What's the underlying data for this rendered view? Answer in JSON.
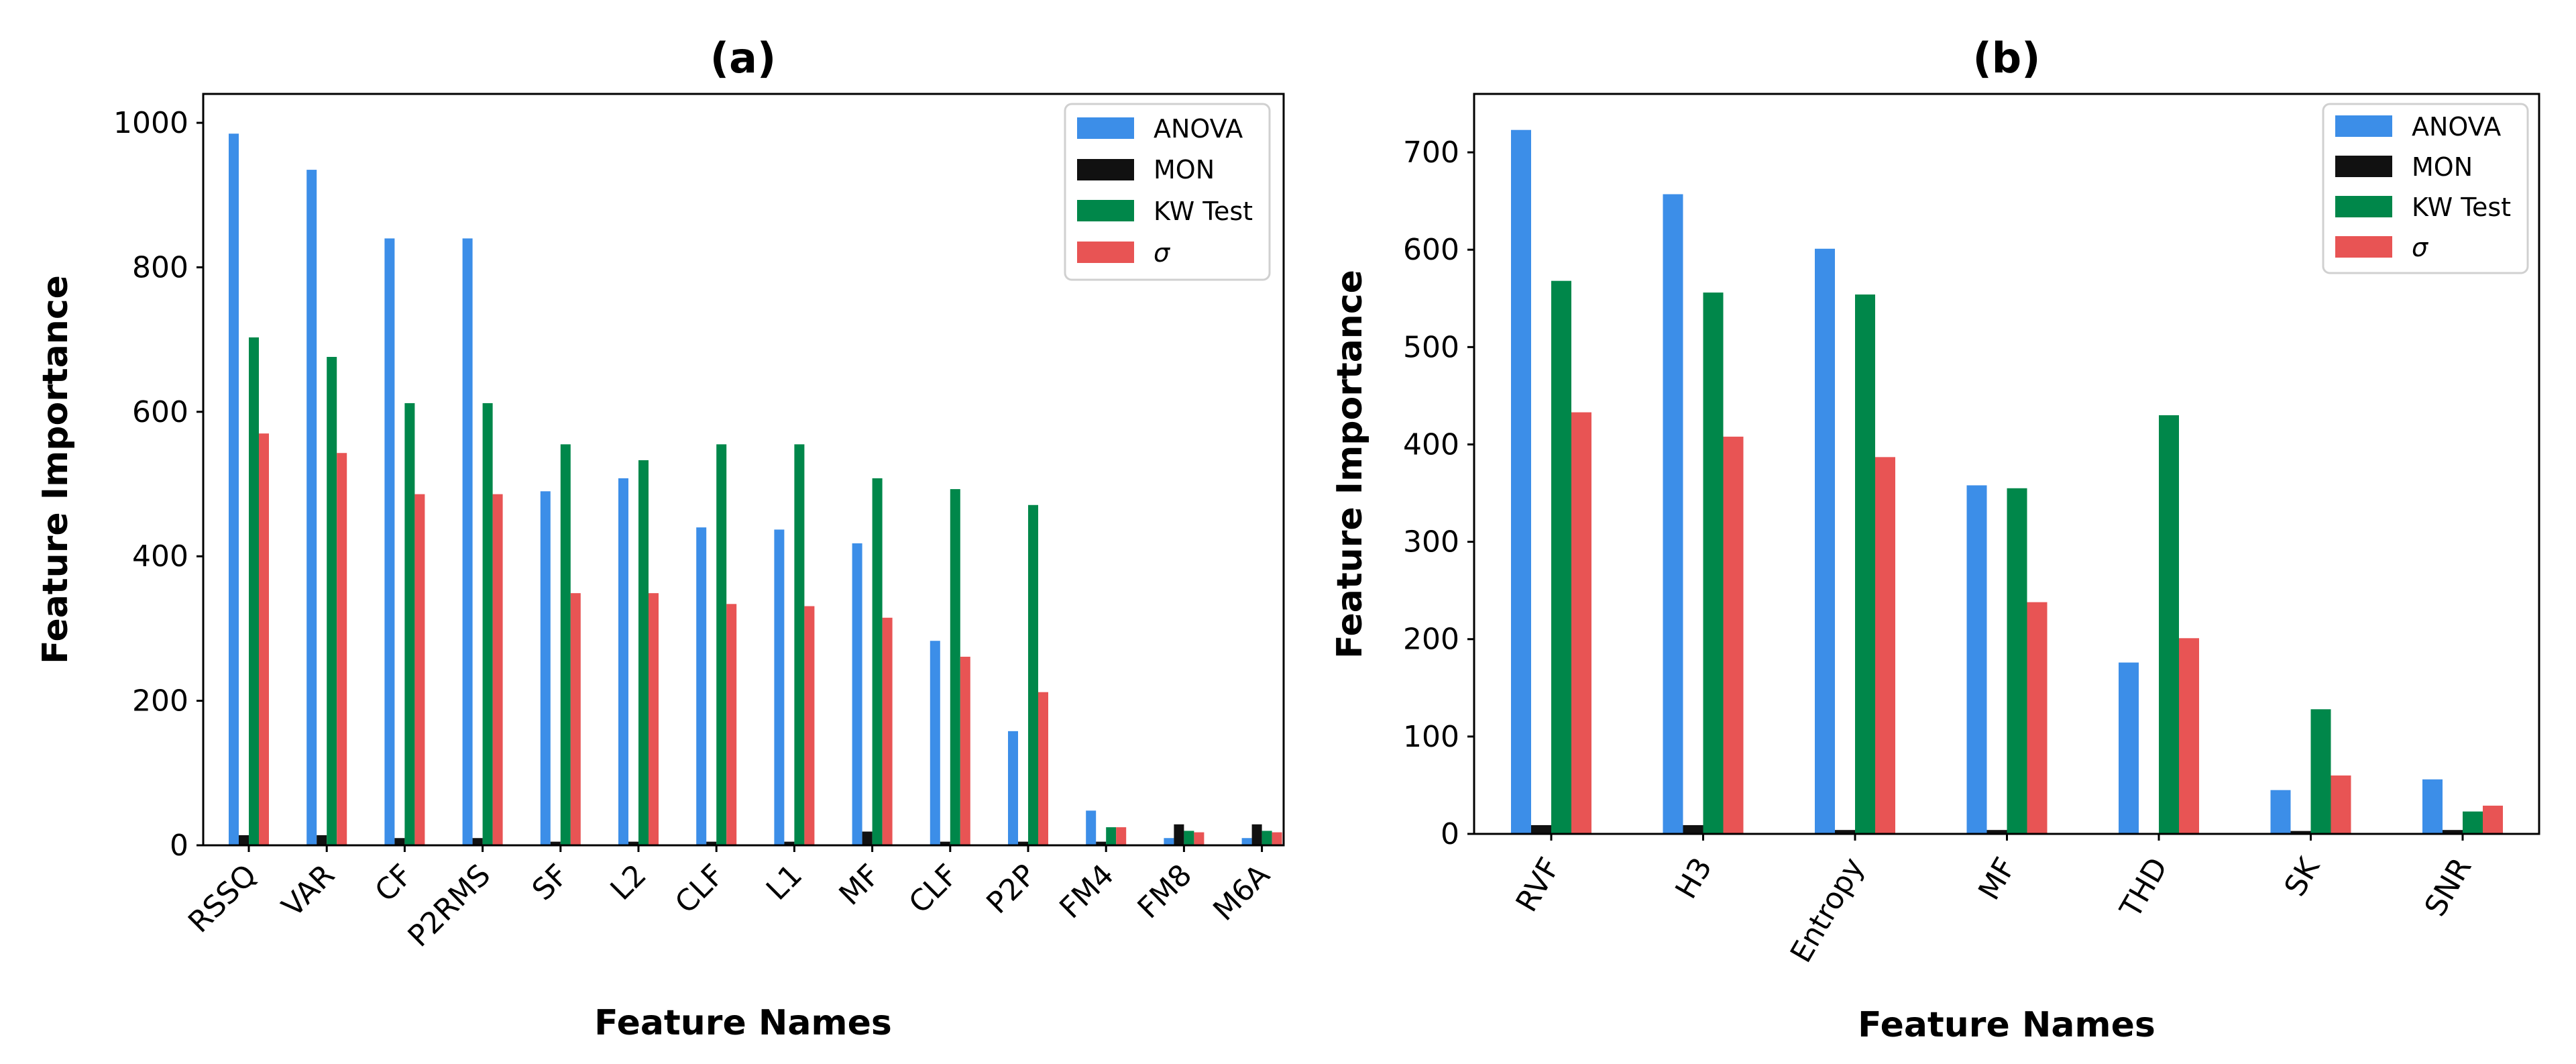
{
  "chart_data": [
    {
      "type": "bar",
      "title": "(a)",
      "xlabel": "Feature Names",
      "ylabel": "Feature Importance",
      "ylim": [
        0,
        1040
      ],
      "yticks": [
        0,
        200,
        400,
        600,
        800,
        1000
      ],
      "categories": [
        "RSSQ",
        "VAR",
        "CF",
        "P2RMS",
        "SF",
        "L2",
        "CLF",
        "L1",
        "MF",
        "CLF",
        "P2P",
        "FM4",
        "FM8",
        "M6A"
      ],
      "series": [
        {
          "name": "ANOVA",
          "color": "#3c8ee8",
          "values": [
            985,
            935,
            840,
            840,
            490,
            508,
            440,
            437,
            418,
            283,
            158,
            48,
            10,
            10
          ]
        },
        {
          "name": "MON",
          "color": "#111111",
          "values": [
            14,
            14,
            10,
            10,
            5,
            5,
            5,
            5,
            19,
            5,
            5,
            5,
            29,
            29
          ]
        },
        {
          "name": "KW Test",
          "color": "#00874a",
          "values": [
            703,
            676,
            612,
            612,
            555,
            533,
            555,
            555,
            508,
            493,
            471,
            25,
            20,
            20
          ]
        },
        {
          "name": "σ",
          "color": "#e85454",
          "values": [
            570,
            543,
            486,
            486,
            349,
            349,
            334,
            331,
            315,
            261,
            212,
            25,
            18,
            18
          ]
        }
      ],
      "legend": {
        "position": "top-right",
        "labels": [
          "ANOVA",
          "MON",
          "KW Test",
          "σ"
        ]
      }
    },
    {
      "type": "bar",
      "title": "(b)",
      "xlabel": "Feature Names",
      "ylabel": "Feature Importance",
      "ylim": [
        0,
        760
      ],
      "yticks": [
        0,
        100,
        200,
        300,
        400,
        500,
        600,
        700
      ],
      "categories": [
        "RVF",
        "H3",
        "Entropy",
        "MF",
        "THD",
        "SK",
        "SNR"
      ],
      "series": [
        {
          "name": "ANOVA",
          "color": "#3c8ee8",
          "values": [
            723,
            657,
            601,
            358,
            176,
            45,
            56
          ]
        },
        {
          "name": "MON",
          "color": "#111111",
          "values": [
            9,
            9,
            4,
            4,
            1,
            3,
            4
          ]
        },
        {
          "name": "KW Test",
          "color": "#00874a",
          "values": [
            568,
            556,
            554,
            355,
            430,
            128,
            23
          ]
        },
        {
          "name": "σ",
          "color": "#e85454",
          "values": [
            433,
            408,
            387,
            238,
            201,
            60,
            29
          ]
        }
      ],
      "legend": {
        "position": "top-right",
        "labels": [
          "ANOVA",
          "MON",
          "KW Test",
          "σ"
        ]
      }
    }
  ]
}
